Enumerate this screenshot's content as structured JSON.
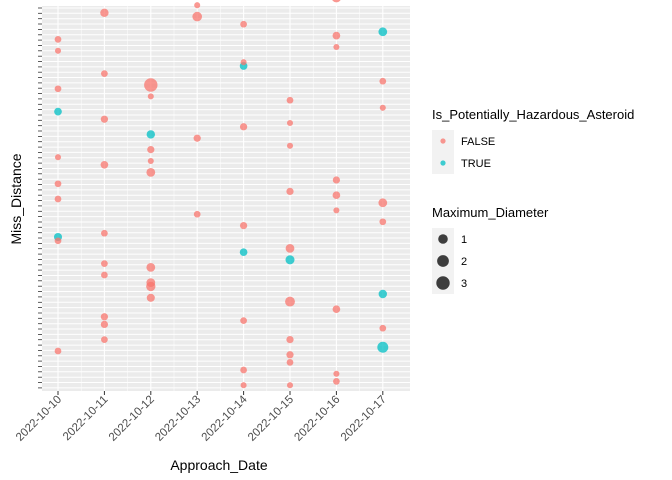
{
  "chart_data": {
    "type": "scatter",
    "xlabel": "Approach_Date",
    "ylabel": "Miss_Distance",
    "categories": [
      "2022-10-10",
      "2022-10-11",
      "2022-10-12",
      "2022-10-13",
      "2022-10-14",
      "2022-10-15",
      "2022-10-16",
      "2022-10-17"
    ],
    "grid": true,
    "y_tick_labels_shown": false,
    "color_legend": {
      "title": "Is_Potentially_Hazardous_Asteroid",
      "entries": [
        {
          "label": "FALSE",
          "color": "#F8766D"
        },
        {
          "label": "TRUE",
          "color": "#00BFC4"
        }
      ]
    },
    "size_legend": {
      "title": "Maximum_Diameter",
      "entries": [
        {
          "label": "1",
          "value": 1
        },
        {
          "label": "2",
          "value": 2
        },
        {
          "label": "3",
          "value": 3
        }
      ]
    },
    "legend_position": "right",
    "y_rank_range": [
      0,
      100
    ],
    "points": [
      {
        "date": "2022-10-10",
        "rank": 92,
        "diameter": 0.2,
        "hazardous": false
      },
      {
        "date": "2022-10-10",
        "rank": 89,
        "diameter": 0.1,
        "hazardous": false
      },
      {
        "date": "2022-10-10",
        "rank": 79,
        "diameter": 0.2,
        "hazardous": false
      },
      {
        "date": "2022-10-10",
        "rank": 73,
        "diameter": 0.4,
        "hazardous": true
      },
      {
        "date": "2022-10-10",
        "rank": 61,
        "diameter": 0.1,
        "hazardous": false
      },
      {
        "date": "2022-10-10",
        "rank": 54,
        "diameter": 0.2,
        "hazardous": false
      },
      {
        "date": "2022-10-10",
        "rank": 50,
        "diameter": 0.2,
        "hazardous": false
      },
      {
        "date": "2022-10-10",
        "rank": 40,
        "diameter": 0.5,
        "hazardous": true
      },
      {
        "date": "2022-10-10",
        "rank": 39,
        "diameter": 0.2,
        "hazardous": false
      },
      {
        "date": "2022-10-10",
        "rank": 10,
        "diameter": 0.2,
        "hazardous": false
      },
      {
        "date": "2022-10-11",
        "rank": 99,
        "diameter": 0.6,
        "hazardous": false
      },
      {
        "date": "2022-10-11",
        "rank": 83,
        "diameter": 0.2,
        "hazardous": false
      },
      {
        "date": "2022-10-11",
        "rank": 71,
        "diameter": 0.3,
        "hazardous": false
      },
      {
        "date": "2022-10-11",
        "rank": 59,
        "diameter": 0.4,
        "hazardous": false
      },
      {
        "date": "2022-10-11",
        "rank": 41,
        "diameter": 0.2,
        "hazardous": false
      },
      {
        "date": "2022-10-11",
        "rank": 33,
        "diameter": 0.2,
        "hazardous": false
      },
      {
        "date": "2022-10-11",
        "rank": 30,
        "diameter": 0.2,
        "hazardous": false
      },
      {
        "date": "2022-10-11",
        "rank": 19,
        "diameter": 0.3,
        "hazardous": false
      },
      {
        "date": "2022-10-11",
        "rank": 17,
        "diameter": 0.3,
        "hazardous": false
      },
      {
        "date": "2022-10-11",
        "rank": 13,
        "diameter": 0.2,
        "hazardous": false
      },
      {
        "date": "2022-10-12",
        "rank": 80,
        "diameter": 3.0,
        "hazardous": false
      },
      {
        "date": "2022-10-12",
        "rank": 77,
        "diameter": 0.1,
        "hazardous": false
      },
      {
        "date": "2022-10-12",
        "rank": 67,
        "diameter": 0.6,
        "hazardous": true
      },
      {
        "date": "2022-10-12",
        "rank": 63,
        "diameter": 0.3,
        "hazardous": false
      },
      {
        "date": "2022-10-12",
        "rank": 60,
        "diameter": 0.1,
        "hazardous": false
      },
      {
        "date": "2022-10-12",
        "rank": 57,
        "diameter": 0.7,
        "hazardous": false
      },
      {
        "date": "2022-10-12",
        "rank": 32,
        "diameter": 0.7,
        "hazardous": false
      },
      {
        "date": "2022-10-12",
        "rank": 28,
        "diameter": 0.7,
        "hazardous": false
      },
      {
        "date": "2022-10-12",
        "rank": 27,
        "diameter": 0.9,
        "hazardous": false
      },
      {
        "date": "2022-10-12",
        "rank": 24,
        "diameter": 0.5,
        "hazardous": false
      },
      {
        "date": "2022-10-13",
        "rank": 101,
        "diameter": 0.1,
        "hazardous": false
      },
      {
        "date": "2022-10-13",
        "rank": 98,
        "diameter": 1.0,
        "hazardous": false
      },
      {
        "date": "2022-10-13",
        "rank": 66,
        "diameter": 0.3,
        "hazardous": false
      },
      {
        "date": "2022-10-13",
        "rank": 46,
        "diameter": 0.2,
        "hazardous": false
      },
      {
        "date": "2022-10-14",
        "rank": 96,
        "diameter": 0.2,
        "hazardous": false
      },
      {
        "date": "2022-10-14",
        "rank": 86,
        "diameter": 0.1,
        "hazardous": false
      },
      {
        "date": "2022-10-14",
        "rank": 85,
        "diameter": 0.4,
        "hazardous": true
      },
      {
        "date": "2022-10-14",
        "rank": 69,
        "diameter": 0.3,
        "hazardous": false
      },
      {
        "date": "2022-10-14",
        "rank": 43,
        "diameter": 0.3,
        "hazardous": false
      },
      {
        "date": "2022-10-14",
        "rank": 36,
        "diameter": 0.4,
        "hazardous": true
      },
      {
        "date": "2022-10-14",
        "rank": 18,
        "diameter": 0.2,
        "hazardous": false
      },
      {
        "date": "2022-10-14",
        "rank": 5,
        "diameter": 0.2,
        "hazardous": false
      },
      {
        "date": "2022-10-14",
        "rank": 1,
        "diameter": 0.1,
        "hazardous": false
      },
      {
        "date": "2022-10-15",
        "rank": 76,
        "diameter": 0.2,
        "hazardous": false
      },
      {
        "date": "2022-10-15",
        "rank": 70,
        "diameter": 0.1,
        "hazardous": false
      },
      {
        "date": "2022-10-15",
        "rank": 64,
        "diameter": 0.1,
        "hazardous": false
      },
      {
        "date": "2022-10-15",
        "rank": 52,
        "diameter": 0.3,
        "hazardous": false
      },
      {
        "date": "2022-10-15",
        "rank": 37,
        "diameter": 0.7,
        "hazardous": false
      },
      {
        "date": "2022-10-15",
        "rank": 34,
        "diameter": 0.8,
        "hazardous": true
      },
      {
        "date": "2022-10-15",
        "rank": 23,
        "diameter": 1.1,
        "hazardous": false
      },
      {
        "date": "2022-10-15",
        "rank": 13,
        "diameter": 0.3,
        "hazardous": false
      },
      {
        "date": "2022-10-15",
        "rank": 9,
        "diameter": 0.3,
        "hazardous": false
      },
      {
        "date": "2022-10-15",
        "rank": 7,
        "diameter": 0.2,
        "hazardous": false
      },
      {
        "date": "2022-10-15",
        "rank": 1,
        "diameter": 0.1,
        "hazardous": false
      },
      {
        "date": "2022-10-16",
        "rank": 103,
        "diameter": 1.0,
        "hazardous": false
      },
      {
        "date": "2022-10-16",
        "rank": 93,
        "diameter": 0.4,
        "hazardous": false
      },
      {
        "date": "2022-10-16",
        "rank": 90,
        "diameter": 0.1,
        "hazardous": false
      },
      {
        "date": "2022-10-16",
        "rank": 55,
        "diameter": 0.3,
        "hazardous": false
      },
      {
        "date": "2022-10-16",
        "rank": 51,
        "diameter": 0.4,
        "hazardous": false
      },
      {
        "date": "2022-10-16",
        "rank": 47,
        "diameter": 0.1,
        "hazardous": false
      },
      {
        "date": "2022-10-16",
        "rank": 21,
        "diameter": 0.4,
        "hazardous": false
      },
      {
        "date": "2022-10-16",
        "rank": 4,
        "diameter": 0.1,
        "hazardous": false
      },
      {
        "date": "2022-10-16",
        "rank": 2,
        "diameter": 0.2,
        "hazardous": false
      },
      {
        "date": "2022-10-17",
        "rank": 94,
        "diameter": 0.7,
        "hazardous": true
      },
      {
        "date": "2022-10-17",
        "rank": 81,
        "diameter": 0.2,
        "hazardous": false
      },
      {
        "date": "2022-10-17",
        "rank": 74,
        "diameter": 0.1,
        "hazardous": false
      },
      {
        "date": "2022-10-17",
        "rank": 49,
        "diameter": 0.7,
        "hazardous": false
      },
      {
        "date": "2022-10-17",
        "rank": 44,
        "diameter": 0.2,
        "hazardous": false
      },
      {
        "date": "2022-10-17",
        "rank": 25,
        "diameter": 0.6,
        "hazardous": true
      },
      {
        "date": "2022-10-17",
        "rank": 16,
        "diameter": 0.2,
        "hazardous": false
      },
      {
        "date": "2022-10-17",
        "rank": 11,
        "diameter": 1.6,
        "hazardous": true
      }
    ]
  }
}
